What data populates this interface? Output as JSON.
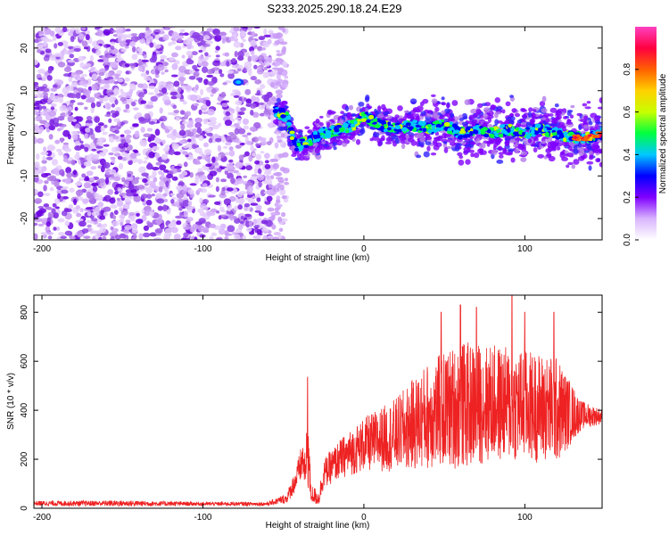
{
  "title": "S233.2025.290.18.24.E29",
  "chart_data": [
    {
      "type": "heatmap",
      "xlabel": "Height of straight line (km)",
      "ylabel": "Frequency (Hz)",
      "xlim": [
        -205,
        148
      ],
      "ylim": [
        -25,
        25
      ],
      "xticks": [
        -200,
        -100,
        0,
        100
      ],
      "yticks": [
        -20,
        -10,
        0,
        10,
        20
      ],
      "x_tick_labels": [
        "-200",
        "-100",
        "0",
        "100"
      ],
      "y_tick_labels": [
        "-20",
        "-10",
        "0",
        "10",
        "20"
      ],
      "noise_region_x": [
        -205,
        -52
      ],
      "signal_ridge": [
        {
          "x": -55,
          "f": 5
        },
        {
          "x": -48,
          "f": 4
        },
        {
          "x": -45,
          "f": 0
        },
        {
          "x": -42,
          "f": -3
        },
        {
          "x": -35,
          "f": -2
        },
        {
          "x": -25,
          "f": 0
        },
        {
          "x": -15,
          "f": 1
        },
        {
          "x": -5,
          "f": 2
        },
        {
          "x": 0,
          "f": 4
        },
        {
          "x": 10,
          "f": 2
        },
        {
          "x": 20,
          "f": 1
        },
        {
          "x": 30,
          "f": 2
        },
        {
          "x": 40,
          "f": 1
        },
        {
          "x": 50,
          "f": 2
        },
        {
          "x": 60,
          "f": 0
        },
        {
          "x": 70,
          "f": 1
        },
        {
          "x": 80,
          "f": 0
        },
        {
          "x": 90,
          "f": 1
        },
        {
          "x": 100,
          "f": 0
        },
        {
          "x": 110,
          "f": 1
        },
        {
          "x": 120,
          "f": 0
        },
        {
          "x": 130,
          "f": -1
        },
        {
          "x": 140,
          "f": -1
        },
        {
          "x": 148,
          "f": 0
        }
      ],
      "isolated_blob": {
        "x": -78,
        "f": 12
      },
      "colorbar": {
        "label": "Normalized spectral amplitude",
        "range": [
          0.0,
          1.0
        ],
        "ticks": [
          0.0,
          0.2,
          0.4,
          0.6,
          0.8
        ],
        "tick_labels": [
          "0.0",
          "0.2",
          "0.4",
          "0.6",
          "0.8"
        ],
        "colors": [
          "#ffffff",
          "#d8b4fe",
          "#8000ff",
          "#0000ff",
          "#00c8ff",
          "#00ff40",
          "#c8ff00",
          "#ffd000",
          "#ff6000",
          "#ff0040",
          "#ff40c0"
        ]
      }
    },
    {
      "type": "line",
      "xlabel": "Height of straight line (km)",
      "ylabel": "SNR (10 * v/v)",
      "xlim": [
        -205,
        148
      ],
      "ylim": [
        0,
        870
      ],
      "xticks": [
        -200,
        -100,
        0,
        100
      ],
      "yticks": [
        0,
        200,
        400,
        600,
        800
      ],
      "x_tick_labels": [
        "-200",
        "-100",
        "0",
        "100"
      ],
      "y_tick_labels": [
        "0",
        "200",
        "400",
        "600",
        "800"
      ],
      "series": [
        {
          "name": "SNR",
          "color": "#ee2222",
          "envelope": [
            {
              "x": -205,
              "base": 20,
              "amp": 10
            },
            {
              "x": -150,
              "base": 20,
              "amp": 12
            },
            {
              "x": -100,
              "base": 18,
              "amp": 8
            },
            {
              "x": -60,
              "base": 18,
              "amp": 8
            },
            {
              "x": -48,
              "base": 40,
              "amp": 20
            },
            {
              "x": -42,
              "base": 120,
              "amp": 50
            },
            {
              "x": -38,
              "base": 200,
              "amp": 80
            },
            {
              "x": -36,
              "base": 140,
              "amp": 60
            },
            {
              "x": -35,
              "base": 300,
              "amp": 220
            },
            {
              "x": -33,
              "base": 60,
              "amp": 40
            },
            {
              "x": -28,
              "base": 40,
              "amp": 30
            },
            {
              "x": -25,
              "base": 140,
              "amp": 60
            },
            {
              "x": -15,
              "base": 200,
              "amp": 80
            },
            {
              "x": 0,
              "base": 260,
              "amp": 110
            },
            {
              "x": 20,
              "base": 300,
              "amp": 150
            },
            {
              "x": 40,
              "base": 380,
              "amp": 220
            },
            {
              "x": 60,
              "base": 420,
              "amp": 260
            },
            {
              "x": 80,
              "base": 430,
              "amp": 240
            },
            {
              "x": 100,
              "base": 420,
              "amp": 230
            },
            {
              "x": 120,
              "base": 400,
              "amp": 220
            },
            {
              "x": 135,
              "base": 380,
              "amp": 60
            },
            {
              "x": 148,
              "base": 375,
              "amp": 30
            }
          ],
          "peaks": [
            {
              "x": -35,
              "y": 535
            },
            {
              "x": 48,
              "y": 800
            },
            {
              "x": 60,
              "y": 830
            },
            {
              "x": 70,
              "y": 820
            },
            {
              "x": 92,
              "y": 870
            },
            {
              "x": 100,
              "y": 800
            },
            {
              "x": 118,
              "y": 800
            }
          ]
        }
      ]
    }
  ]
}
